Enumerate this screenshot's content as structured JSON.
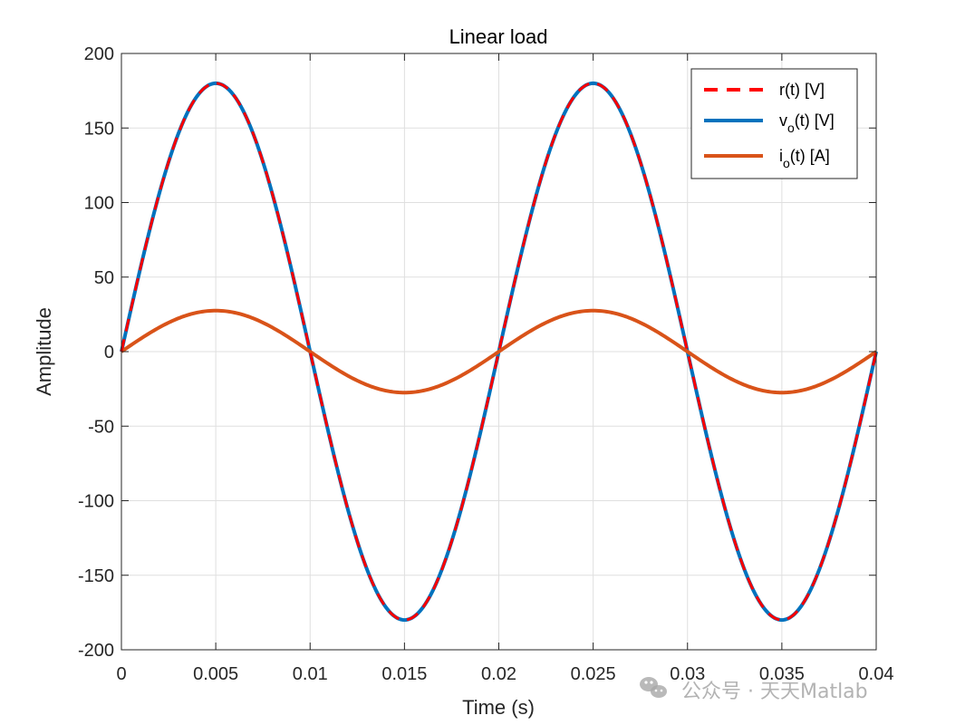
{
  "chart_data": {
    "type": "line",
    "title": "Linear load",
    "xlabel": "Time (s)",
    "ylabel": "Amplitude",
    "xlim": [
      0,
      0.04
    ],
    "ylim": [
      -200,
      200
    ],
    "x_ticks": [
      "0",
      "0.005",
      "0.01",
      "0.015",
      "0.02",
      "0.025",
      "0.03",
      "0.035",
      "0.04"
    ],
    "y_ticks": [
      "200",
      "150",
      "100",
      "50",
      "0",
      "-50",
      "-100",
      "-150",
      "-200"
    ],
    "grid": true,
    "legend_position": "top-right",
    "series": [
      {
        "name": "r(t) [V]",
        "base": "r",
        "sub": "",
        "rest": "(t) [V]",
        "color": "#FF0000",
        "style": "dashed",
        "amplitude": 180,
        "frequency_hz": 50,
        "phase": 0,
        "x": [
          0,
          0.005,
          0.01,
          0.015,
          0.02,
          0.025,
          0.03,
          0.035,
          0.04
        ],
        "values": [
          0,
          180,
          0,
          -180,
          0,
          180,
          0,
          -180,
          0
        ]
      },
      {
        "name": "v_o(t) [V]",
        "base": "v",
        "sub": "o",
        "rest": "(t) [V]",
        "color": "#0072BD",
        "style": "solid",
        "amplitude": 180,
        "frequency_hz": 50,
        "phase": 0,
        "x": [
          0,
          0.005,
          0.01,
          0.015,
          0.02,
          0.025,
          0.03,
          0.035,
          0.04
        ],
        "values": [
          0,
          180,
          0,
          -180,
          0,
          180,
          0,
          -180,
          0
        ]
      },
      {
        "name": "i_o(t) [A]",
        "base": "i",
        "sub": "o",
        "rest": "(t) [A]",
        "color": "#D95319",
        "style": "solid",
        "amplitude": 27.5,
        "frequency_hz": 50,
        "phase": 0,
        "x": [
          0,
          0.005,
          0.01,
          0.015,
          0.02,
          0.025,
          0.03,
          0.035,
          0.04
        ],
        "values": [
          0,
          27.5,
          0,
          -27.5,
          0,
          27.5,
          0,
          -27.5,
          0
        ]
      }
    ]
  },
  "watermark": "公众号 · 天天Matlab"
}
